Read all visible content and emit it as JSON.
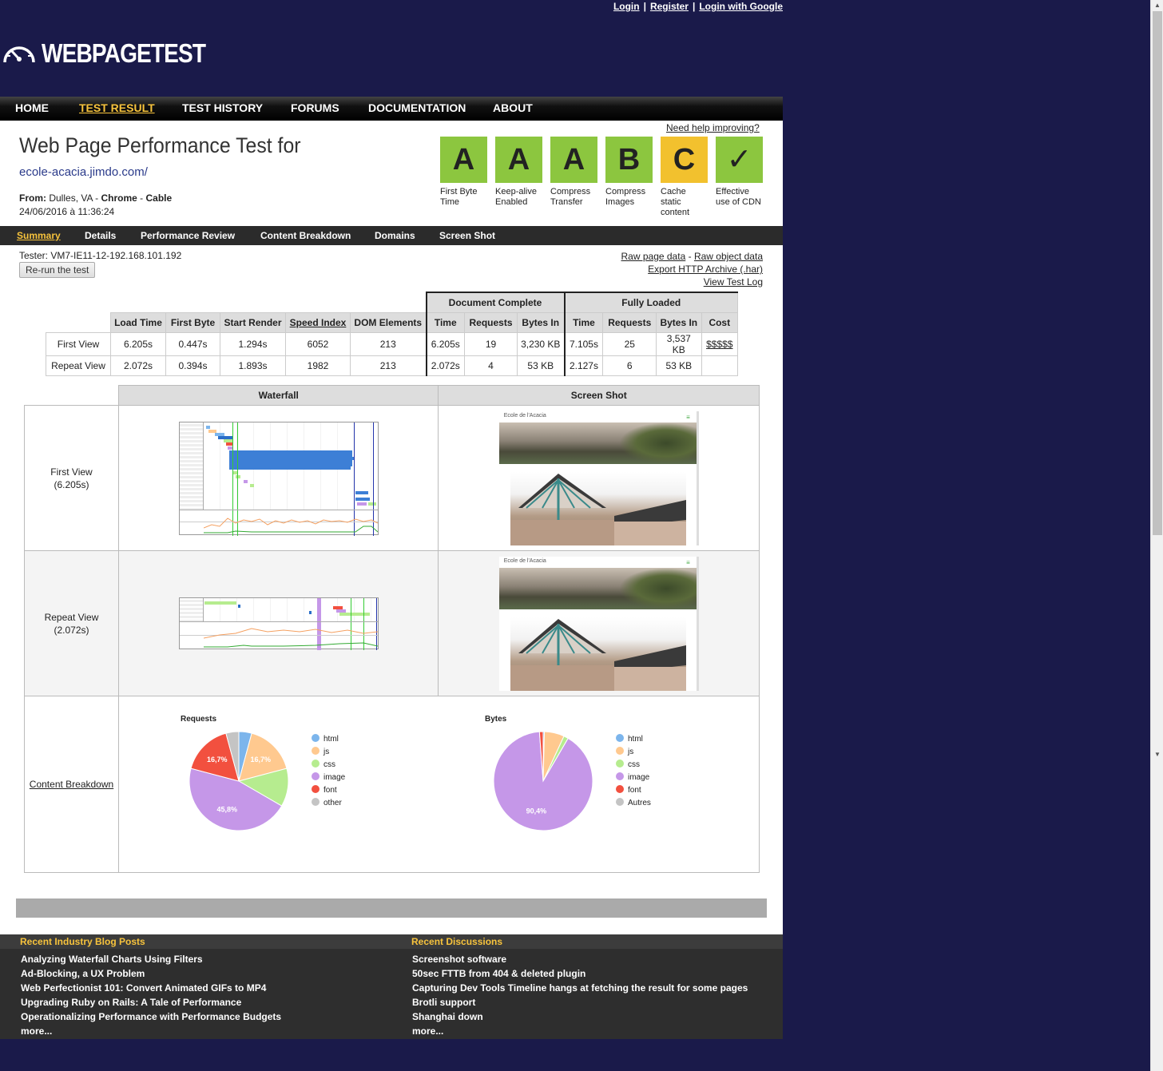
{
  "top_links": {
    "login": "Login",
    "register": "Register",
    "login_google": "Login with Google"
  },
  "logo": {
    "text": "WEBPAGETEST",
    "icon": "speedometer-icon"
  },
  "nav": [
    {
      "label": "HOME",
      "active": false
    },
    {
      "label": "TEST RESULT",
      "active": true
    },
    {
      "label": "TEST HISTORY",
      "active": false
    },
    {
      "label": "FORUMS",
      "active": false
    },
    {
      "label": "DOCUMENTATION",
      "active": false
    },
    {
      "label": "ABOUT",
      "active": false
    }
  ],
  "header": {
    "title": "Web Page Performance Test for",
    "url": "ecole-acacia.jimdo.com/",
    "from_label": "From:",
    "from_location": "Dulles, VA",
    "from_browser": "Chrome",
    "from_connection": "Cable",
    "date": "24/06/2016 à 11:36:24",
    "need_help": "Need help improving?"
  },
  "grades": [
    {
      "grade": "A",
      "label": "First Byte Time",
      "color": "#8cc63f"
    },
    {
      "grade": "A",
      "label": "Keep-alive Enabled",
      "color": "#8cc63f"
    },
    {
      "grade": "A",
      "label": "Compress Transfer",
      "color": "#8cc63f"
    },
    {
      "grade": "B",
      "label": "Compress Images",
      "color": "#8cc63f"
    },
    {
      "grade": "C",
      "label": "Cache static content",
      "color": "#f2c12e"
    },
    {
      "grade": "✓",
      "label": "Effective use of CDN",
      "color": "#8cc63f"
    }
  ],
  "subnav": [
    {
      "label": "Summary",
      "active": true
    },
    {
      "label": "Details"
    },
    {
      "label": "Performance Review"
    },
    {
      "label": "Content Breakdown"
    },
    {
      "label": "Domains"
    },
    {
      "label": "Screen Shot"
    }
  ],
  "tester": "Tester: VM7-IE11-12-192.168.101.192",
  "rerun_label": "Re-run the test",
  "links": {
    "raw_page": "Raw page data",
    "raw_object": "Raw object data",
    "export_har": "Export HTTP Archive (.har)",
    "view_log": "View Test Log",
    "dash": "-"
  },
  "results": {
    "group_doc": "Document Complete",
    "group_full": "Fully Loaded",
    "headers": [
      "Load Time",
      "First Byte",
      "Start Render",
      "Speed Index",
      "DOM Elements",
      "Time",
      "Requests",
      "Bytes In",
      "Time",
      "Requests",
      "Bytes In",
      "Cost"
    ],
    "rows": [
      {
        "label": "First View",
        "cells": [
          "6.205s",
          "0.447s",
          "1.294s",
          "6052",
          "213",
          "6.205s",
          "19",
          "3,230 KB",
          "7.105s",
          "25",
          "3,537 KB",
          "$$$$$"
        ]
      },
      {
        "label": "Repeat View",
        "cells": [
          "2.072s",
          "0.394s",
          "1.893s",
          "1982",
          "213",
          "2.072s",
          "4",
          "53 KB",
          "2.127s",
          "6",
          "53 KB",
          ""
        ]
      }
    ]
  },
  "media": {
    "waterfall_header": "Waterfall",
    "screenshot_header": "Screen Shot",
    "first_view": "First View",
    "first_view_time": "(6.205s)",
    "repeat_view": "Repeat View",
    "repeat_view_time": "(2.072s)",
    "content_breakdown": "Content Breakdown"
  },
  "chart_data": [
    {
      "type": "pie",
      "title": "Requests",
      "labels": [
        "html",
        "js",
        "css",
        "image",
        "font",
        "other"
      ],
      "values": [
        4.2,
        16.7,
        12.5,
        45.8,
        16.7,
        4.2
      ],
      "data_labels": [
        "",
        "16,7%",
        "",
        "45,8%",
        "16,7%",
        ""
      ],
      "colors": [
        "#7cb5ec",
        "#ffc98f",
        "#b6ec8f",
        "#c597e8",
        "#f2503f",
        "#c4c4c4"
      ]
    },
    {
      "type": "pie",
      "title": "Bytes",
      "labels": [
        "html",
        "js",
        "css",
        "image",
        "font",
        "Autres"
      ],
      "values": [
        0.4,
        6.5,
        1.5,
        90.4,
        1.2,
        0
      ],
      "data_labels": [
        "",
        "",
        "",
        "90,4%",
        "",
        ""
      ],
      "colors": [
        "#7cb5ec",
        "#ffc98f",
        "#b6ec8f",
        "#c597e8",
        "#f2503f",
        "#c4c4c4"
      ]
    }
  ],
  "footer": {
    "blog_title": "Recent Industry Blog Posts",
    "blog": [
      "Analyzing Waterfall Charts Using Filters",
      "Ad-Blocking, a UX Problem",
      "Web Perfectionist 101: Convert Animated GIFs to MP4",
      "Upgrading Ruby on Rails: A Tale of Performance",
      "Operationalizing Performance with Performance Budgets",
      "more..."
    ],
    "disc_title": "Recent Discussions",
    "discussions": [
      "Screenshot software",
      "50sec FTTB from 404 & deleted plugin",
      "Capturing Dev Tools Timeline hangs at fetching the result for some pages",
      "Brotli support",
      "Shanghai down",
      "more..."
    ]
  }
}
